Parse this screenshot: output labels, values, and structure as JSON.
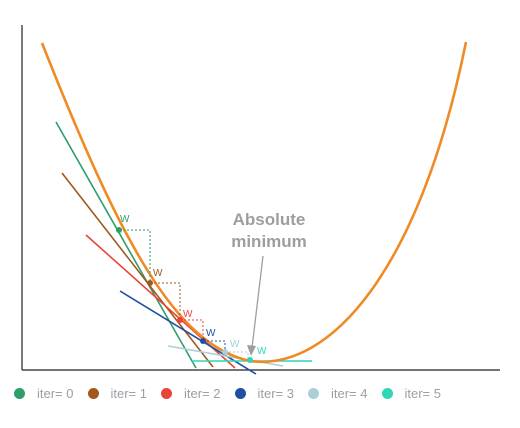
{
  "annotation": {
    "line1": "Absolute",
    "line2": "minimum",
    "color": "#9e9e9e"
  },
  "weight_label": "W",
  "curve_color": "#f08a24",
  "legend": [
    {
      "label": "iter= 0",
      "color": "#2e9e6a"
    },
    {
      "label": "iter= 1",
      "color": "#a0581e"
    },
    {
      "label": "iter= 2",
      "color": "#e8443a"
    },
    {
      "label": "iter= 3",
      "color": "#1f4fa3"
    },
    {
      "label": "iter= 4",
      "color": "#a9cfd8"
    },
    {
      "label": "iter= 5",
      "color": "#2fd6b6"
    }
  ]
}
